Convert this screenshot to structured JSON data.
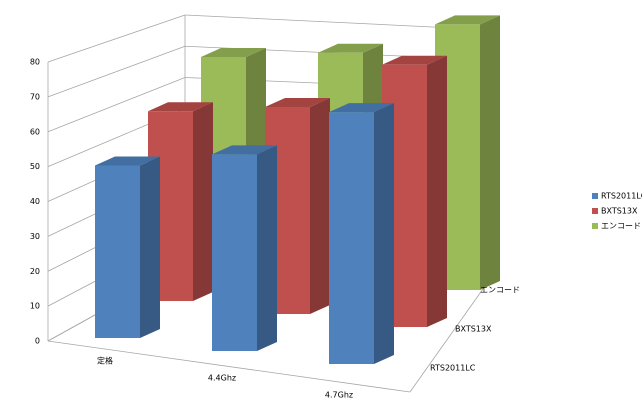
{
  "chart_data": {
    "type": "bar3d",
    "categories": [
      "定格",
      "4.4Ghz",
      "4.7Ghz"
    ],
    "series": [
      {
        "name": "RTS2011LC",
        "color": "#4f81bd",
        "values": [
          50,
          57,
          73
        ]
      },
      {
        "name": "BXTS13X",
        "color": "#c0504d",
        "values": [
          55,
          60,
          76
        ]
      },
      {
        "name": "エンコード",
        "color": "#9bbb59",
        "values": [
          60,
          65,
          77
        ]
      }
    ],
    "ylim": [
      0,
      80
    ],
    "yticks": [
      0,
      10,
      20,
      30,
      40,
      50,
      60,
      70,
      80
    ],
    "grid": true,
    "legend": "right"
  }
}
